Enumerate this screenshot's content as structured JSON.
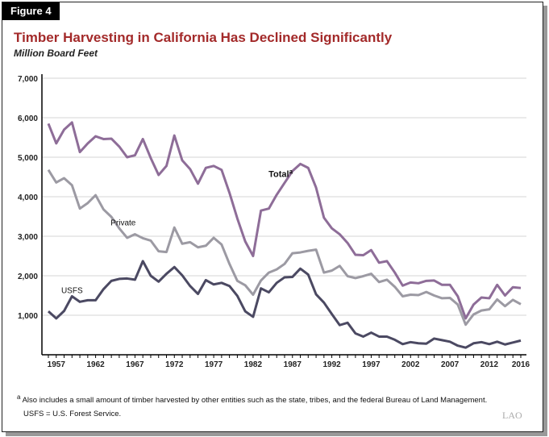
{
  "figure_label": "Figure 4",
  "chart_data": {
    "type": "line",
    "title": "Timber Harvesting in California Has Declined Significantly",
    "subtitle": "Million Board Feet",
    "x": [
      1956,
      1957,
      1958,
      1959,
      1960,
      1961,
      1962,
      1963,
      1964,
      1965,
      1966,
      1967,
      1968,
      1969,
      1970,
      1971,
      1972,
      1973,
      1974,
      1975,
      1976,
      1977,
      1978,
      1979,
      1980,
      1981,
      1982,
      1983,
      1984,
      1985,
      1986,
      1987,
      1988,
      1989,
      1990,
      1991,
      1992,
      1993,
      1994,
      1995,
      1996,
      1997,
      1998,
      1999,
      2000,
      2001,
      2002,
      2003,
      2004,
      2005,
      2006,
      2007,
      2008,
      2009,
      2010,
      2011,
      2012,
      2013,
      2014,
      2015,
      2016
    ],
    "xticks": [
      "1957",
      "1962",
      "1967",
      "1972",
      "1977",
      "1982",
      "1987",
      "1992",
      "1997",
      "2002",
      "2007",
      "2012",
      "2016"
    ],
    "yticks": [
      "7,000",
      "6,000",
      "5,000",
      "4,000",
      "3,000",
      "2,000",
      "1,000"
    ],
    "ylim": [
      0,
      7000
    ],
    "grid": true,
    "series": [
      {
        "name": "Total",
        "label_sup": "a",
        "color": "#8e6d98",
        "values": [
          5850,
          5350,
          5700,
          5880,
          5130,
          5350,
          5530,
          5460,
          5470,
          5270,
          5000,
          5050,
          5460,
          4980,
          4550,
          4780,
          5550,
          4920,
          4700,
          4330,
          4730,
          4780,
          4680,
          4100,
          3450,
          2870,
          2500,
          3650,
          3700,
          4050,
          4350,
          4650,
          4830,
          4730,
          4230,
          3470,
          3200,
          3050,
          2830,
          2530,
          2520,
          2650,
          2330,
          2370,
          2080,
          1750,
          1830,
          1810,
          1870,
          1880,
          1770,
          1770,
          1480,
          920,
          1270,
          1450,
          1430,
          1770,
          1500,
          1710,
          1690
        ]
      },
      {
        "name": "Private",
        "color": "#9c9aa3",
        "values": [
          4680,
          4360,
          4470,
          4290,
          3700,
          3840,
          4040,
          3680,
          3490,
          3200,
          2960,
          3050,
          2950,
          2890,
          2620,
          2600,
          3220,
          2810,
          2850,
          2720,
          2760,
          2960,
          2790,
          2300,
          1870,
          1760,
          1520,
          1880,
          2080,
          2160,
          2300,
          2570,
          2590,
          2630,
          2660,
          2080,
          2130,
          2250,
          1990,
          1940,
          1990,
          2050,
          1840,
          1900,
          1720,
          1480,
          1520,
          1510,
          1590,
          1500,
          1430,
          1440,
          1270,
          760,
          1020,
          1120,
          1150,
          1400,
          1230,
          1390,
          1280
        ]
      },
      {
        "name": "USFS",
        "color": "#4b4962",
        "values": [
          1100,
          920,
          1110,
          1480,
          1340,
          1380,
          1380,
          1660,
          1870,
          1920,
          1930,
          1900,
          2370,
          2000,
          1850,
          2050,
          2220,
          2010,
          1740,
          1540,
          1890,
          1780,
          1820,
          1740,
          1490,
          1100,
          960,
          1680,
          1580,
          1820,
          1960,
          1970,
          2180,
          2030,
          1530,
          1320,
          1030,
          750,
          810,
          540,
          460,
          560,
          460,
          460,
          380,
          270,
          320,
          290,
          280,
          410,
          370,
          330,
          230,
          180,
          290,
          320,
          270,
          330,
          260,
          310,
          360
        ]
      }
    ]
  },
  "footnotes": {
    "a_marker": "a",
    "a_text": "Also includes a small amount of timber harvested by other entities such as the state, tribes, and the federal Bureau of Land Management.",
    "usfs": "USFS = U.S. Forest Service."
  },
  "logo": "LAO"
}
